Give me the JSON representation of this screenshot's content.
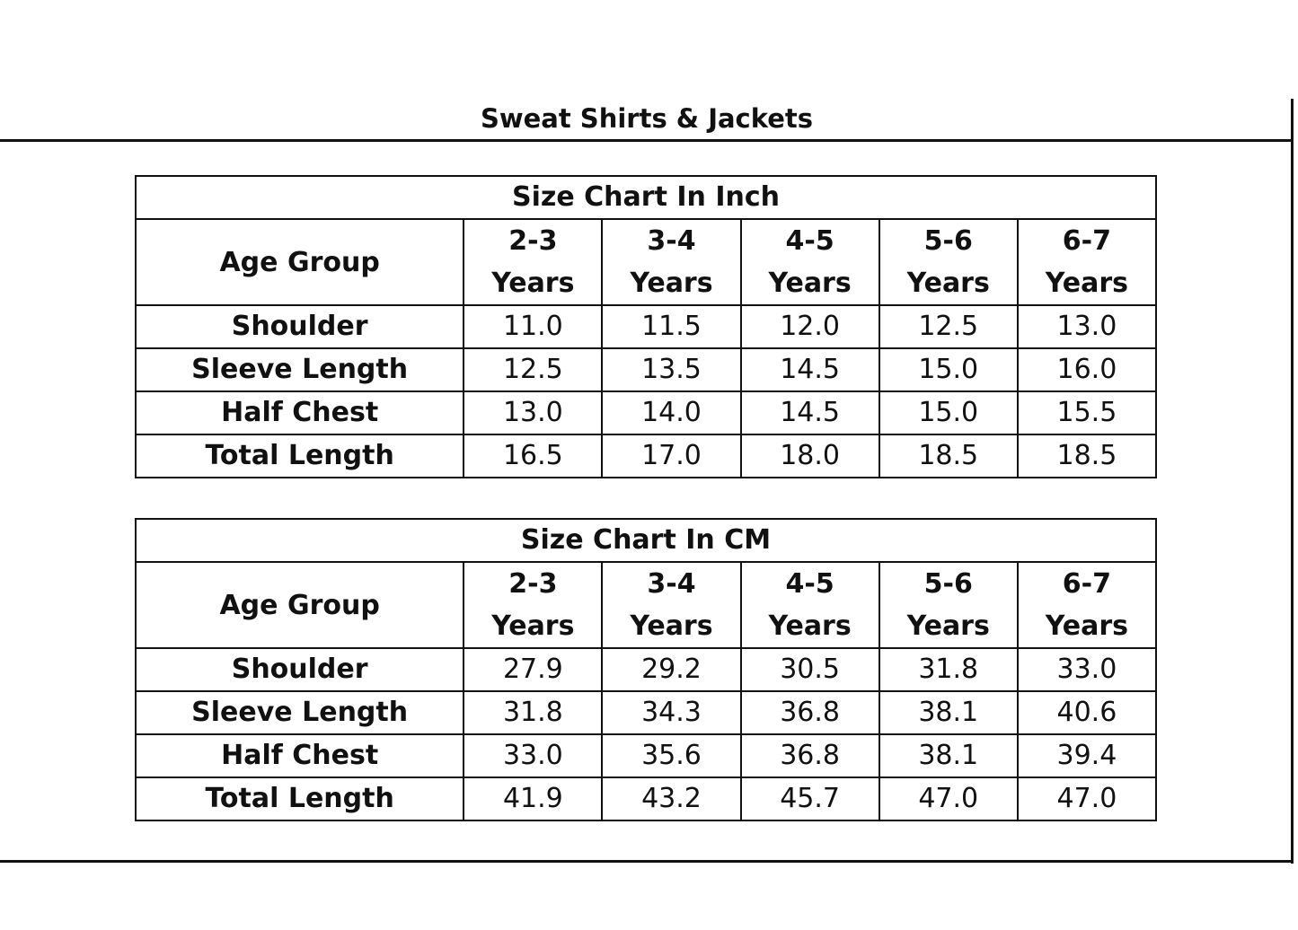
{
  "title": "Sweat Shirts & Jackets",
  "tables": [
    {
      "caption": "Size Chart In Inch",
      "header_label": "Age Group",
      "columns": [
        {
          "top": "2-3",
          "bottom": "Years"
        },
        {
          "top": "3-4",
          "bottom": "Years"
        },
        {
          "top": "4-5",
          "bottom": "Years"
        },
        {
          "top": "5-6",
          "bottom": "Years"
        },
        {
          "top": "6-7",
          "bottom": "Years"
        }
      ],
      "rows": [
        {
          "label": "Shoulder",
          "values": [
            "11.0",
            "11.5",
            "12.0",
            "12.5",
            "13.0"
          ]
        },
        {
          "label": "Sleeve Length",
          "values": [
            "12.5",
            "13.5",
            "14.5",
            "15.0",
            "16.0"
          ]
        },
        {
          "label": "Half Chest",
          "values": [
            "13.0",
            "14.0",
            "14.5",
            "15.0",
            "15.5"
          ]
        },
        {
          "label": "Total Length",
          "values": [
            "16.5",
            "17.0",
            "18.0",
            "18.5",
            "18.5"
          ]
        }
      ]
    },
    {
      "caption": "Size Chart In CM",
      "header_label": "Age Group",
      "columns": [
        {
          "top": "2-3",
          "bottom": "Years"
        },
        {
          "top": "3-4",
          "bottom": "Years"
        },
        {
          "top": "4-5",
          "bottom": "Years"
        },
        {
          "top": "5-6",
          "bottom": "Years"
        },
        {
          "top": "6-7",
          "bottom": "Years"
        }
      ],
      "rows": [
        {
          "label": "Shoulder",
          "values": [
            "27.9",
            "29.2",
            "30.5",
            "31.8",
            "33.0"
          ]
        },
        {
          "label": "Sleeve Length",
          "values": [
            "31.8",
            "34.3",
            "36.8",
            "38.1",
            "40.6"
          ]
        },
        {
          "label": "Half Chest",
          "values": [
            "33.0",
            "35.6",
            "36.8",
            "38.1",
            "39.4"
          ]
        },
        {
          "label": "Total Length",
          "values": [
            "41.9",
            "43.2",
            "45.7",
            "47.0",
            "47.0"
          ]
        }
      ]
    }
  ]
}
